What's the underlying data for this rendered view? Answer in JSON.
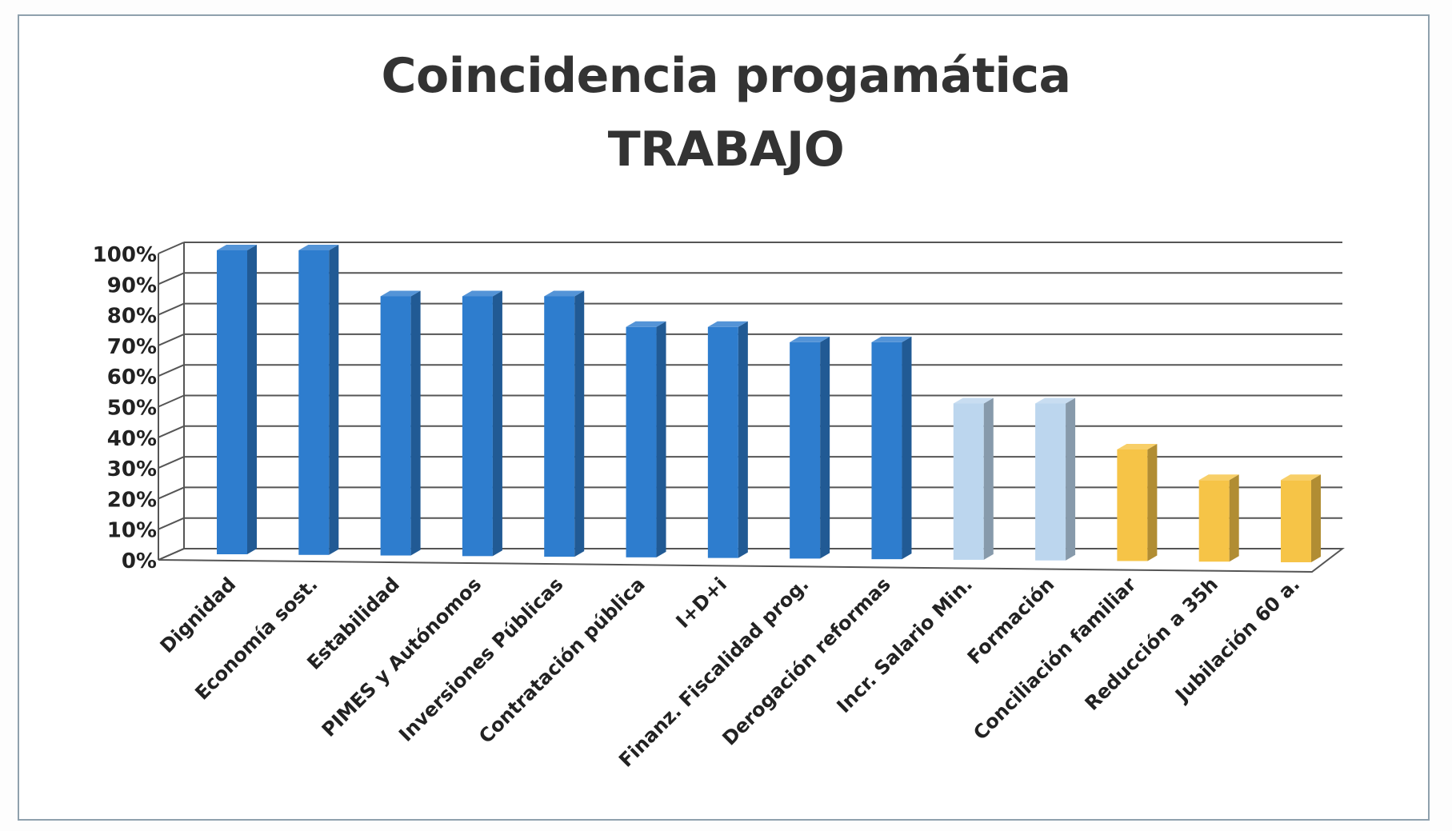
{
  "chart_data": {
    "type": "bar",
    "title": "Coincidencia progamática",
    "subtitle": "TRABAJO",
    "categories": [
      "Dignidad",
      "Economía sost.",
      "Estabilidad",
      "PIMES y Autónomos",
      "Inversiones Públicas",
      "Contratación pública",
      "I+D+i",
      "Finanz. Fiscalidad prog.",
      "Derogación reformas",
      "Incr. Salario Min.",
      "Formación",
      "Conciliación familiar",
      "Reducción a 35h",
      "Jubilación 60 a."
    ],
    "values": [
      100,
      100,
      85,
      85,
      85,
      75,
      75,
      70,
      70,
      50,
      50,
      35,
      25,
      25
    ],
    "bar_groups": [
      "dark",
      "dark",
      "dark",
      "dark",
      "dark",
      "dark",
      "dark",
      "dark",
      "dark",
      "light",
      "light",
      "gold",
      "gold",
      "gold"
    ],
    "colors": {
      "dark": "#2e7dce",
      "light": "#bcd6ee",
      "gold": "#f6c447",
      "grid": "#555555"
    },
    "ytick_labels": [
      "0%",
      "10%",
      "20%",
      "30%",
      "40%",
      "50%",
      "60%",
      "70%",
      "80%",
      "90%",
      "100%"
    ],
    "ylim": [
      0,
      100
    ],
    "xlabel": "",
    "ylabel": "",
    "chart_style": "3d-column",
    "grid": true,
    "legend": "none"
  }
}
